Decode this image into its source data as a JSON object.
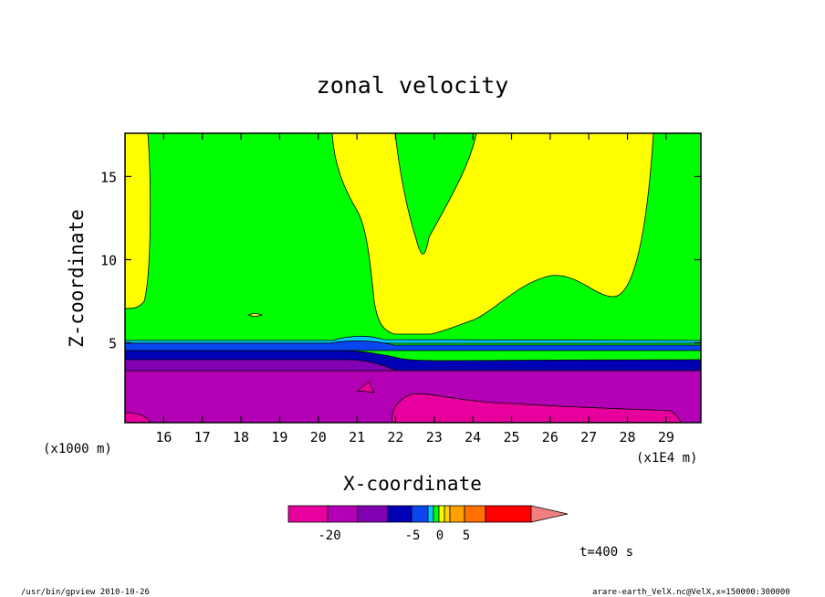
{
  "chart_data": {
    "type": "heatmap",
    "title": "zonal velocity",
    "xlabel": "X-coordinate",
    "ylabel": "Z-coordinate",
    "x_unit": "(x1E4 m)",
    "y_unit": "(x1000 m)",
    "x_ticks": [
      16,
      17,
      18,
      19,
      20,
      21,
      22,
      23,
      24,
      25,
      26,
      27,
      28,
      29
    ],
    "y_ticks": [
      5,
      10,
      15
    ],
    "xlim": [
      15,
      29.9
    ],
    "ylim": [
      0.2,
      17.6
    ],
    "colorbar": {
      "colors": [
        "#e8009e",
        "#b400b4",
        "#8200b4",
        "#0000b4",
        "#0a46f0",
        "#00c8ff",
        "#00ff00",
        "#ffff00",
        "#ffd200",
        "#ffa000",
        "#ff7000",
        "#ff0000",
        "#f08080"
      ],
      "tick_labels": [
        "-20",
        "-5",
        "0",
        "5"
      ]
    },
    "time_label": "t=400 s",
    "footer_left": "/usr/bin/gpview  2010-10-26",
    "footer_right": "arare-earth_VelX.nc@VelX,x=150000:300000"
  }
}
